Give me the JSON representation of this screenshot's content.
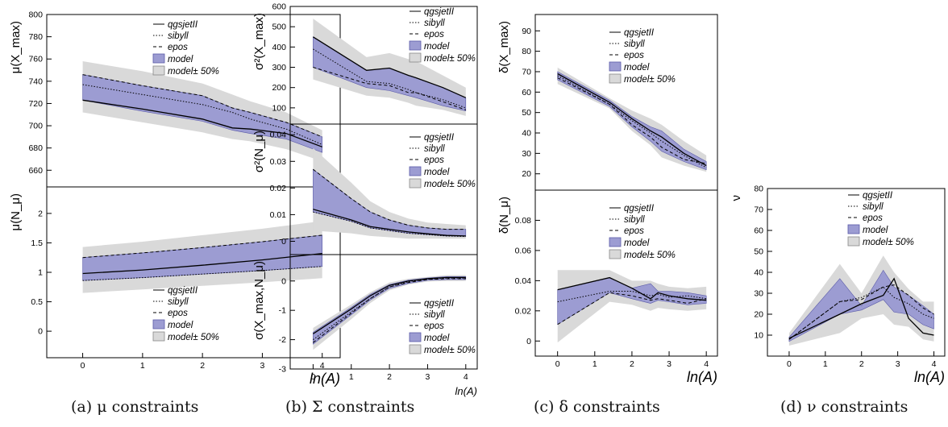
{
  "colors": {
    "band": "#d9d9d9",
    "model": "#9c9cd2",
    "model_edge": "#5a5aa8",
    "line": "#000000"
  },
  "legend_labels": [
    "qgsjetII",
    "sibyll",
    "epos",
    "model",
    "model± 50%"
  ],
  "captions": [
    "(a) μ constraints",
    "(b) Σ constraints",
    "(c) δ constraints",
    "(d) ν constraints"
  ],
  "chart_data": [
    {
      "id": "a_top",
      "type": "line",
      "panel": "a",
      "ylabel": "μ(X_max)",
      "xlim": [
        -0.6,
        4.3
      ],
      "ylim": [
        645,
        800
      ],
      "yticks": [
        660,
        680,
        700,
        720,
        740,
        760,
        780,
        800
      ],
      "xticks": [],
      "legend": {
        "placement": "top-right"
      },
      "x": [
        0,
        1,
        2,
        2.5,
        2.8,
        3.4,
        4
      ],
      "series": [
        {
          "name": "qgsjetII",
          "style": "solid",
          "values": [
            723,
            715,
            706,
            698,
            697,
            693,
            681
          ]
        },
        {
          "name": "sibyll",
          "style": "dotted",
          "values": [
            737,
            728,
            719,
            712,
            706,
            697,
            683
          ]
        },
        {
          "name": "epos",
          "style": "dashed",
          "values": [
            746,
            736,
            727,
            716,
            712,
            703,
            690
          ]
        }
      ],
      "model_band": {
        "upper": [
          746,
          736,
          727,
          716,
          712,
          703,
          690
        ],
        "lower": [
          723,
          713,
          704,
          696,
          693,
          688,
          676
        ]
      },
      "outer_band": {
        "upper": [
          758,
          749,
          738,
          728,
          722,
          712,
          696
        ],
        "lower": [
          712,
          703,
          694,
          688,
          686,
          679,
          668
        ]
      }
    },
    {
      "id": "a_bot",
      "type": "line",
      "panel": "a",
      "ylabel": "μ(N_μ)",
      "xlim": [
        -0.6,
        4.3
      ],
      "ylim": [
        -0.45,
        2.45
      ],
      "yticks": [
        0,
        0.5,
        1,
        1.5,
        2
      ],
      "xticks": [
        0,
        1,
        2,
        3,
        4
      ],
      "xlabel": "ln(A)",
      "legend": {
        "placement": "bottom-right"
      },
      "x": [
        0,
        1,
        2,
        3,
        4
      ],
      "series": [
        {
          "name": "qgsjetII",
          "style": "solid",
          "values": [
            0.98,
            1.04,
            1.12,
            1.21,
            1.32
          ]
        },
        {
          "name": "sibyll",
          "style": "dotted",
          "values": [
            0.86,
            0.91,
            0.97,
            1.03,
            1.1
          ]
        },
        {
          "name": "epos",
          "style": "dashed",
          "values": [
            1.25,
            1.33,
            1.42,
            1.52,
            1.63
          ]
        }
      ],
      "model_band": {
        "upper": [
          1.25,
          1.33,
          1.42,
          1.52,
          1.63
        ],
        "lower": [
          0.86,
          0.91,
          0.97,
          1.03,
          1.1
        ]
      },
      "outer_band": {
        "upper": [
          1.43,
          1.52,
          1.63,
          1.74,
          1.87
        ],
        "lower": [
          0.65,
          0.71,
          0.77,
          0.83,
          0.9
        ]
      }
    },
    {
      "id": "b_top",
      "type": "line",
      "panel": "b",
      "ylabel": "σ²(X_max)",
      "xlim": [
        -0.6,
        4.3
      ],
      "ylim": [
        20,
        600
      ],
      "yticks": [
        100,
        200,
        300,
        400,
        500,
        600
      ],
      "xticks": [],
      "legend": {
        "placement": "top-right"
      },
      "x": [
        0,
        1.4,
        2,
        2.5,
        2.7,
        3.4,
        4
      ],
      "series": [
        {
          "name": "qgsjetII",
          "style": "solid",
          "values": [
            450,
            285,
            296,
            260,
            248,
            200,
            150
          ]
        },
        {
          "name": "sibyll",
          "style": "dotted",
          "values": [
            390,
            230,
            220,
            190,
            175,
            140,
            100
          ]
        },
        {
          "name": "epos",
          "style": "dashed",
          "values": [
            300,
            220,
            210,
            175,
            175,
            130,
            90
          ]
        }
      ],
      "model_band": {
        "upper": [
          450,
          285,
          296,
          260,
          248,
          200,
          150
        ],
        "lower": [
          300,
          200,
          185,
          160,
          150,
          110,
          85
        ]
      },
      "outer_band": {
        "upper": [
          540,
          350,
          370,
          340,
          330,
          260,
          200
        ],
        "lower": [
          240,
          160,
          150,
          125,
          110,
          90,
          60
        ]
      }
    },
    {
      "id": "b_mid",
      "type": "line",
      "panel": "b",
      "ylabel": "σ²(N_μ)",
      "xlim": [
        -0.6,
        4.3
      ],
      "ylim": [
        -0.005,
        0.044
      ],
      "yticks": [
        0,
        0.01,
        0.02,
        0.03,
        0.04
      ],
      "xticks": [],
      "legend": {
        "placement": "top-right"
      },
      "x": [
        0,
        1,
        1.5,
        2,
        2.5,
        3,
        3.5,
        4
      ],
      "series": [
        {
          "name": "qgsjetII",
          "style": "solid",
          "values": [
            0.012,
            0.008,
            0.0055,
            0.0045,
            0.0035,
            0.0028,
            0.0022,
            0.002
          ]
        },
        {
          "name": "sibyll",
          "style": "dotted",
          "values": [
            0.011,
            0.0075,
            0.005,
            0.004,
            0.003,
            0.0025,
            0.002,
            0.0018
          ]
        },
        {
          "name": "epos",
          "style": "dashed",
          "values": [
            0.027,
            0.016,
            0.011,
            0.008,
            0.006,
            0.005,
            0.0045,
            0.0045
          ]
        }
      ],
      "model_band": {
        "upper": [
          0.027,
          0.016,
          0.011,
          0.008,
          0.006,
          0.005,
          0.0045,
          0.0045
        ],
        "lower": [
          0.011,
          0.0075,
          0.005,
          0.004,
          0.003,
          0.0025,
          0.002,
          0.0018
        ]
      },
      "outer_band": {
        "upper": [
          0.035,
          0.022,
          0.015,
          0.011,
          0.0085,
          0.007,
          0.0065,
          0.006
        ],
        "lower": [
          0.004,
          0.003,
          0.002,
          0.0015,
          0.001,
          0.001,
          0.001,
          0.001
        ]
      }
    },
    {
      "id": "b_bot",
      "type": "line",
      "panel": "b",
      "ylabel": "σ(X_max,N_μ)",
      "xlim": [
        -0.6,
        4.3
      ],
      "ylim": [
        -3,
        0.9
      ],
      "yticks": [
        -3,
        -2,
        -1,
        0
      ],
      "xticks": [
        0,
        1,
        2,
        3,
        4
      ],
      "xlabel": "ln(A)",
      "legend": {
        "placement": "bottom-right"
      },
      "x": [
        0,
        1,
        1.5,
        2,
        2.5,
        3,
        3.5,
        4
      ],
      "series": [
        {
          "name": "qgsjetII",
          "style": "solid",
          "values": [
            -1.8,
            -0.95,
            -0.5,
            -0.15,
            0.0,
            0.08,
            0.12,
            0.12
          ]
        },
        {
          "name": "sibyll",
          "style": "dotted",
          "values": [
            -2.0,
            -1.05,
            -0.6,
            -0.2,
            -0.02,
            0.06,
            0.1,
            0.1
          ]
        },
        {
          "name": "epos",
          "style": "dashed",
          "values": [
            -2.1,
            -1.1,
            -0.6,
            -0.2,
            -0.05,
            0.05,
            0.08,
            0.08
          ]
        }
      ],
      "model_band": {
        "upper": [
          -1.75,
          -0.9,
          -0.45,
          -0.12,
          0.03,
          0.1,
          0.15,
          0.15
        ],
        "lower": [
          -2.15,
          -1.15,
          -0.65,
          -0.25,
          -0.08,
          0.02,
          0.05,
          0.05
        ]
      },
      "outer_band": {
        "upper": [
          -1.6,
          -0.8,
          -0.38,
          -0.05,
          0.08,
          0.14,
          0.2,
          0.2
        ],
        "lower": [
          -2.35,
          -1.3,
          -0.75,
          -0.32,
          -0.12,
          -0.02,
          0.0,
          0.0
        ]
      }
    },
    {
      "id": "c_top",
      "type": "line",
      "panel": "c",
      "ylabel": "δ(X_max)",
      "xlim": [
        -0.6,
        4.3
      ],
      "ylim": [
        12,
        98
      ],
      "yticks": [
        20,
        30,
        40,
        50,
        60,
        70,
        80,
        90
      ],
      "xticks": [],
      "legend": {
        "placement": "top-right"
      },
      "x": [
        0,
        1.4,
        2,
        2.5,
        2.8,
        3.4,
        4
      ],
      "series": [
        {
          "name": "qgsjetII",
          "style": "solid",
          "values": [
            69,
            55,
            47,
            41,
            38,
            30,
            24
          ]
        },
        {
          "name": "sibyll",
          "style": "dotted",
          "values": [
            68,
            54,
            46,
            40,
            36,
            29,
            23
          ]
        },
        {
          "name": "epos",
          "style": "dashed",
          "values": [
            67,
            54,
            44,
            38,
            33,
            27,
            25
          ]
        }
      ],
      "model_band": {
        "upper": [
          70,
          56,
          48,
          43,
          41,
          32,
          26
        ],
        "lower": [
          66,
          53,
          43,
          36,
          31,
          26,
          22
        ]
      },
      "outer_band": {
        "upper": [
          72,
          57,
          51,
          47,
          44,
          36,
          29
        ],
        "lower": [
          64,
          52,
          41,
          34,
          28,
          24,
          21
        ]
      }
    },
    {
      "id": "c_bot",
      "type": "line",
      "panel": "c",
      "ylabel": "δ(N_μ)",
      "xlim": [
        -0.6,
        4.3
      ],
      "ylim": [
        -0.01,
        0.1
      ],
      "yticks": [
        0,
        0.02,
        0.04,
        0.06,
        0.08
      ],
      "xticks": [
        0,
        1,
        2,
        3,
        4
      ],
      "xlabel": "ln(A)",
      "legend": {
        "placement": "top-right"
      },
      "x": [
        0,
        1.4,
        2,
        2.5,
        2.7,
        3,
        3.5,
        4
      ],
      "series": [
        {
          "name": "qgsjetII",
          "style": "solid",
          "values": [
            0.034,
            0.042,
            0.035,
            0.028,
            0.032,
            0.03,
            0.028,
            0.027
          ]
        },
        {
          "name": "sibyll",
          "style": "dotted",
          "values": [
            0.026,
            0.033,
            0.033,
            0.03,
            0.031,
            0.029,
            0.03,
            0.028
          ]
        },
        {
          "name": "epos",
          "style": "dashed",
          "values": [
            0.011,
            0.032,
            0.03,
            0.027,
            0.028,
            0.027,
            0.025,
            0.028
          ]
        }
      ],
      "model_band": {
        "upper": [
          0.034,
          0.042,
          0.035,
          0.038,
          0.033,
          0.033,
          0.032,
          0.03
        ],
        "lower": [
          0.011,
          0.032,
          0.028,
          0.025,
          0.027,
          0.026,
          0.024,
          0.025
        ]
      },
      "outer_band": {
        "upper": [
          0.047,
          0.047,
          0.04,
          0.04,
          0.038,
          0.036,
          0.035,
          0.036
        ],
        "lower": [
          -0.001,
          0.026,
          0.024,
          0.02,
          0.022,
          0.021,
          0.02,
          0.021
        ]
      }
    },
    {
      "id": "d",
      "type": "line",
      "panel": "d",
      "ylabel": "ν",
      "xlim": [
        -0.6,
        4.3
      ],
      "ylim": [
        0,
        80
      ],
      "yticks": [
        10,
        20,
        30,
        40,
        50,
        60,
        70,
        80
      ],
      "xticks": [
        0,
        1,
        2,
        3,
        4
      ],
      "xlabel": "ln(A)",
      "legend": {
        "placement": "top-right"
      },
      "x": [
        0,
        1.4,
        2,
        2.6,
        2.9,
        3.3,
        3.7,
        4
      ],
      "series": [
        {
          "name": "qgsjetII",
          "style": "solid",
          "values": [
            8.5,
            20,
            25,
            29,
            37,
            18,
            11,
            10
          ]
        },
        {
          "name": "sibyll",
          "style": "dotted",
          "values": [
            8,
            26,
            28,
            33,
            28,
            25,
            20,
            18
          ]
        },
        {
          "name": "epos",
          "style": "dashed",
          "values": [
            8,
            26,
            27,
            33,
            34,
            29,
            23,
            20
          ]
        }
      ],
      "model_band": {
        "upper": [
          9,
          37,
          24,
          41,
          33,
          29,
          24,
          20
        ],
        "lower": [
          7,
          20,
          22,
          27,
          21,
          20,
          15,
          13
        ]
      },
      "outer_band": {
        "upper": [
          11,
          44,
          30,
          48,
          40,
          32,
          26,
          26
        ],
        "lower": [
          5,
          11,
          18,
          20,
          15,
          14,
          8,
          7
        ]
      }
    }
  ]
}
